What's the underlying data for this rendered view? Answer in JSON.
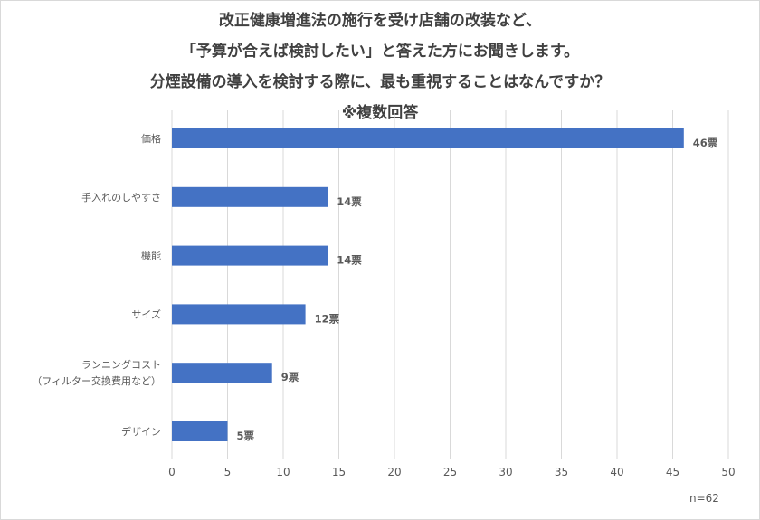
{
  "chart_data": {
    "type": "bar",
    "orientation": "horizontal",
    "title_lines": [
      "改正健康増進法の施行を受け店舗の改装など、",
      "「予算が合えば検討したい」と答えた方にお聞きします。",
      "分煙設備の導入を検討する際に、最も重視することはなんですか？",
      "※複数回答"
    ],
    "categories": [
      "価格",
      "手入れのしやすさ",
      "機能",
      "サイズ",
      "ランニングコスト\n（フィルター交換費用など）",
      "デザイン"
    ],
    "values": [
      46,
      14,
      14,
      12,
      9,
      5
    ],
    "data_labels": [
      "46票",
      "14票",
      "14票",
      "12票",
      "9票",
      "5票"
    ],
    "xlim": [
      0,
      50
    ],
    "xticks": [
      0,
      5,
      10,
      15,
      20,
      25,
      30,
      35,
      40,
      45,
      50
    ],
    "grid": true,
    "bar_color": "#4472c4",
    "note": "n=62"
  }
}
